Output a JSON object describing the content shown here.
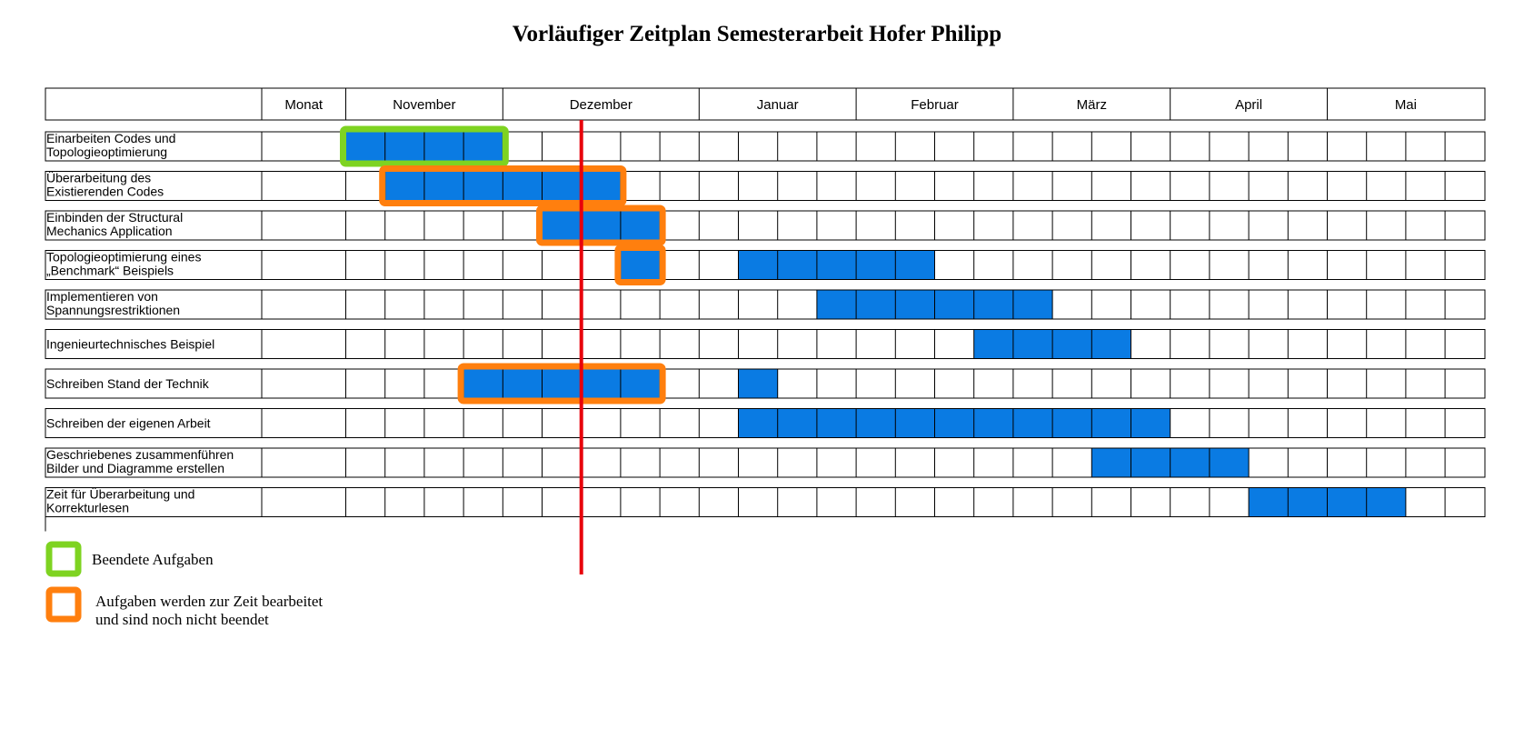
{
  "title": "Vorläufiger Zeitplan Semesterarbeit Hofer Philipp",
  "header": {
    "label": "Monat",
    "months": [
      {
        "name": "November",
        "weeks": 4
      },
      {
        "name": "Dezember",
        "weeks": 5
      },
      {
        "name": "Januar",
        "weeks": 4
      },
      {
        "name": "Februar",
        "weeks": 4
      },
      {
        "name": "März",
        "weeks": 4
      },
      {
        "name": "April",
        "weeks": 4
      },
      {
        "name": "Mai",
        "weeks": 4
      }
    ]
  },
  "colors": {
    "bar": "#0a7be3",
    "done_outline": "#7ed321",
    "in_progress_outline": "#ff7f0e",
    "today_line": "#e8000b"
  },
  "chart_data": {
    "type": "gantt",
    "today_week": 6,
    "tasks": [
      {
        "label": [
          "Einarbeiten Codes und",
          "Topologieoptimierung"
        ],
        "bars": [
          {
            "start": 0,
            "weeks": 4,
            "status": "done"
          }
        ]
      },
      {
        "label": [
          " Überarbeitung des",
          "Existierenden Codes"
        ],
        "bars": [
          {
            "start": 1,
            "weeks": 6,
            "status": "in_progress"
          }
        ]
      },
      {
        "label": [
          "Einbinden der Structural",
          "Mechanics Application"
        ],
        "bars": [
          {
            "start": 5,
            "weeks": 3,
            "status": "in_progress"
          }
        ]
      },
      {
        "label": [
          "Topologieoptimierung eines",
          "„Benchmark“ Beispiels"
        ],
        "bars": [
          {
            "start": 7,
            "weeks": 1,
            "status": "in_progress"
          },
          {
            "start": 10,
            "weeks": 5,
            "status": "planned"
          }
        ]
      },
      {
        "label": [
          "Implementieren von",
          "Spannungsrestriktionen"
        ],
        "bars": [
          {
            "start": 12,
            "weeks": 6,
            "status": "planned"
          }
        ]
      },
      {
        "label": [
          "Ingenieurtechnisches Beispiel"
        ],
        "bars": [
          {
            "start": 16,
            "weeks": 4,
            "status": "planned"
          }
        ]
      },
      {
        "label": [
          "Schreiben Stand der Technik"
        ],
        "bars": [
          {
            "start": 3,
            "weeks": 5,
            "status": "in_progress"
          },
          {
            "start": 10,
            "weeks": 1,
            "status": "planned"
          }
        ]
      },
      {
        "label": [
          "Schreiben der eigenen Arbeit"
        ],
        "bars": [
          {
            "start": 10,
            "weeks": 11,
            "status": "planned"
          }
        ]
      },
      {
        "label": [
          "Geschriebenes zusammenführen",
          "Bilder und Diagramme erstellen"
        ],
        "bars": [
          {
            "start": 19,
            "weeks": 4,
            "status": "planned"
          }
        ]
      },
      {
        "label": [
          "Zeit für Überarbeitung und",
          "Korrekturlesen"
        ],
        "bars": [
          {
            "start": 23,
            "weeks": 4,
            "status": "planned"
          }
        ]
      }
    ]
  },
  "legend": {
    "done": [
      "Beendete Aufgaben"
    ],
    "in_progress": [
      "Aufgaben werden zur Zeit bearbeitet",
      "und sind noch nicht beendet"
    ]
  }
}
